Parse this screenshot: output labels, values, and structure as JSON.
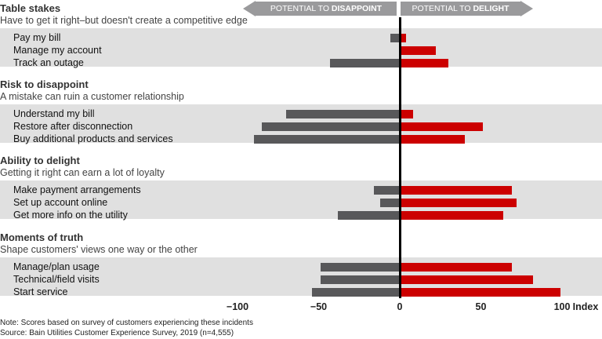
{
  "chart_data": {
    "type": "bar",
    "orientation": "horizontal-diverging",
    "xlim": [
      -100,
      100
    ],
    "x_ticks": [
      "−100",
      "−50",
      "0",
      "50",
      "100"
    ],
    "x_tick_values": [
      -100,
      -50,
      0,
      50,
      100
    ],
    "xlabel": "Index",
    "header_left": {
      "prefix": "POTENTIAL TO ",
      "bold": "DISAPPOINT"
    },
    "header_right": {
      "prefix": "POTENTIAL TO ",
      "bold": "DELIGHT"
    },
    "colors": {
      "disappoint": "#58585a",
      "delight": "#cc0000",
      "band": "#e0e0e0"
    },
    "groups": [
      {
        "title": "Table stakes",
        "subtitle": "Have to get it right–but doesn't create a competitive edge",
        "items": [
          {
            "label": "Pay my bill",
            "disappoint": -6,
            "delight": 4
          },
          {
            "label": "Manage my account",
            "disappoint": 0,
            "delight": 22
          },
          {
            "label": "Track an outage",
            "disappoint": -43,
            "delight": 30
          }
        ]
      },
      {
        "title": "Risk to disappoint",
        "subtitle": "A mistake can ruin a customer relationship",
        "items": [
          {
            "label": "Understand my bill",
            "disappoint": -70,
            "delight": 8
          },
          {
            "label": "Restore after disconnection",
            "disappoint": -85,
            "delight": 51
          },
          {
            "label": "Buy additional products and services",
            "disappoint": -90,
            "delight": 40
          }
        ]
      },
      {
        "title": "Ability to delight",
        "subtitle": "Getting it right can earn a lot of loyalty",
        "items": [
          {
            "label": "Make payment arrangements",
            "disappoint": -16,
            "delight": 69
          },
          {
            "label": "Set up account online",
            "disappoint": -12,
            "delight": 72
          },
          {
            "label": "Get more info on the utility",
            "disappoint": -38,
            "delight": 64
          }
        ]
      },
      {
        "title": "Moments of truth",
        "subtitle": "Shape customers' views one way or the other",
        "items": [
          {
            "label": "Manage/plan usage",
            "disappoint": -49,
            "delight": 69
          },
          {
            "label": "Technical/field visits",
            "disappoint": -49,
            "delight": 82
          },
          {
            "label": "Start service",
            "disappoint": -54,
            "delight": 99
          }
        ]
      }
    ]
  },
  "notes": {
    "note": "Note: Scores based on survey of customers experiencing these incidents",
    "source": "Source: Bain Utilities Customer Experience Survey, 2019 (n=4,555)"
  }
}
